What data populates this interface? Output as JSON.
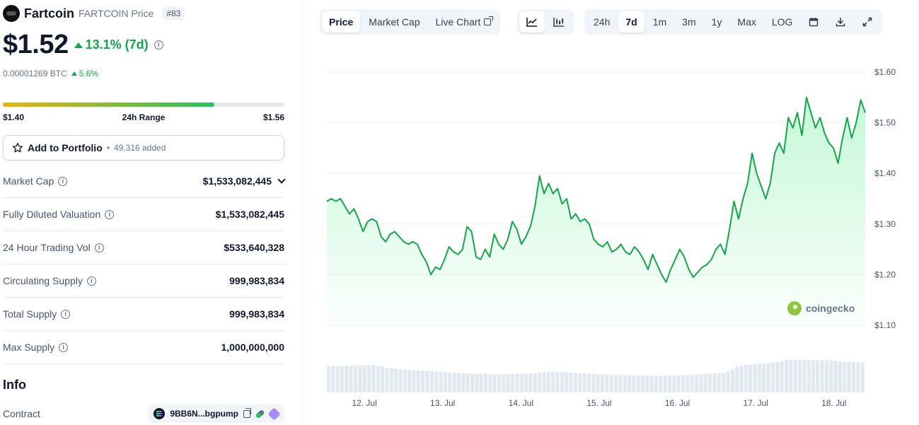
{
  "coin": {
    "name": "Fartcoin",
    "subtitle": "FARTCOIN Price",
    "rank": "#83",
    "price": "$1.52",
    "change_7d": "13.1% (7d)",
    "btc_price": "0.00001269 BTC",
    "btc_change": "5.6%"
  },
  "range": {
    "low": "$1.40",
    "label": "24h Range",
    "high": "$1.56",
    "fill_fraction": 0.75
  },
  "portfolio": {
    "button_label": "Add to Portfolio",
    "bullet": "•",
    "added": "49,316 added"
  },
  "stats": [
    {
      "label": "Market Cap",
      "value": "$1,533,082,445"
    },
    {
      "label": "Fully Diluted Valuation",
      "value": "$1,533,082,445"
    },
    {
      "label": "24 Hour Trading Vol",
      "value": "$533,640,328"
    },
    {
      "label": "Circulating Supply",
      "value": "999,983,834"
    },
    {
      "label": "Total Supply",
      "value": "999,983,834"
    },
    {
      "label": "Max Supply",
      "value": "1,000,000,000"
    }
  ],
  "info": {
    "title": "Info",
    "contract_label": "Contract",
    "contract_value": "9BB6N...bgpump"
  },
  "toolbar": {
    "view_tabs": [
      "Price",
      "Market Cap",
      "Live Chart"
    ],
    "active_view": "Price",
    "chart_types": [
      "line-chart-icon",
      "candlestick-icon"
    ],
    "active_chart_type": "line-chart-icon",
    "ranges": [
      "24h",
      "7d",
      "1m",
      "3m",
      "1y",
      "Max",
      "LOG"
    ],
    "active_range": "7d",
    "actions": [
      "calendar-icon",
      "download-icon",
      "fullscreen-icon"
    ]
  },
  "watermark": "coingecko",
  "colors": {
    "up": "#16a34a",
    "line": "#16a34a",
    "area_top": "#bbf7d0",
    "volume": "#e2e8f0"
  },
  "chart_data": {
    "type": "area",
    "y_ticks": [
      "$1.60",
      "$1.50",
      "$1.40",
      "$1.30",
      "$1.20",
      "$1.10"
    ],
    "ylim": [
      1.1,
      1.6
    ],
    "x_ticks": [
      "12. Jul",
      "13. Jul",
      "14. Jul",
      "15. Jul",
      "16. Jul",
      "17. Jul",
      "18. Jul"
    ],
    "x_tick_days": [
      1,
      2,
      3,
      4,
      5,
      6,
      7
    ],
    "xlim": [
      0.52,
      7.4
    ],
    "grid": true,
    "series": [
      {
        "values": [
          1.345,
          1.35,
          1.345,
          1.35,
          1.335,
          1.32,
          1.33,
          1.31,
          1.285,
          1.305,
          1.31,
          1.305,
          1.275,
          1.265,
          1.28,
          1.285,
          1.275,
          1.265,
          1.26,
          1.265,
          1.26,
          1.24,
          1.225,
          1.2,
          1.215,
          1.21,
          1.23,
          1.255,
          1.245,
          1.24,
          1.25,
          1.295,
          1.285,
          1.235,
          1.23,
          1.25,
          1.235,
          1.28,
          1.26,
          1.25,
          1.27,
          1.305,
          1.29,
          1.26,
          1.275,
          1.295,
          1.335,
          1.395,
          1.36,
          1.38,
          1.36,
          1.37,
          1.34,
          1.35,
          1.31,
          1.32,
          1.305,
          1.31,
          1.3,
          1.27,
          1.26,
          1.255,
          1.265,
          1.245,
          1.25,
          1.26,
          1.245,
          1.24,
          1.255,
          1.245,
          1.23,
          1.21,
          1.24,
          1.22,
          1.2,
          1.185,
          1.21,
          1.23,
          1.25,
          1.235,
          1.21,
          1.195,
          1.205,
          1.215,
          1.22,
          1.23,
          1.25,
          1.26,
          1.24,
          1.29,
          1.345,
          1.31,
          1.35,
          1.38,
          1.44,
          1.4,
          1.375,
          1.35,
          1.38,
          1.44,
          1.46,
          1.44,
          1.51,
          1.49,
          1.52,
          1.475,
          1.55,
          1.52,
          1.49,
          1.51,
          1.48,
          1.46,
          1.45,
          1.42,
          1.47,
          1.51,
          1.47,
          1.5,
          1.545,
          1.52
        ]
      }
    ],
    "volume": [
      0.62,
      0.62,
      0.62,
      0.62,
      0.63,
      0.63,
      0.64,
      0.64,
      0.64,
      0.65,
      0.65,
      0.63,
      0.62,
      0.58,
      0.57,
      0.56,
      0.55,
      0.54,
      0.53,
      0.52,
      0.52,
      0.51,
      0.51,
      0.5,
      0.49,
      0.48,
      0.48,
      0.47,
      0.47,
      0.46,
      0.45,
      0.45,
      0.44,
      0.44,
      0.44,
      0.44,
      0.43,
      0.43,
      0.43,
      0.43,
      0.44,
      0.44,
      0.44,
      0.44,
      0.45,
      0.45,
      0.46,
      0.47,
      0.48,
      0.48,
      0.48,
      0.48,
      0.48,
      0.47,
      0.46,
      0.46,
      0.45,
      0.45,
      0.44,
      0.44,
      0.43,
      0.43,
      0.42,
      0.42,
      0.41,
      0.41,
      0.41,
      0.4,
      0.4,
      0.4,
      0.4,
      0.4,
      0.4,
      0.39,
      0.39,
      0.4,
      0.4,
      0.4,
      0.4,
      0.41,
      0.41,
      0.42,
      0.42,
      0.43,
      0.44,
      0.44,
      0.45,
      0.46,
      0.46,
      0.5,
      0.55,
      0.6,
      0.63,
      0.65,
      0.66,
      0.67,
      0.68,
      0.68,
      0.69,
      0.71,
      0.72,
      0.74,
      0.76,
      0.77,
      0.77,
      0.77,
      0.77,
      0.77,
      0.76,
      0.76,
      0.76,
      0.76,
      0.75,
      0.74,
      0.73,
      0.73,
      0.72,
      0.72,
      0.71,
      0.71
    ]
  }
}
